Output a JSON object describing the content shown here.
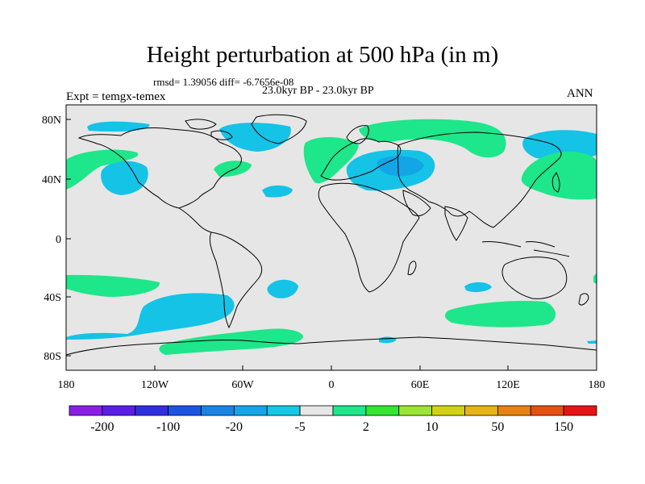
{
  "title": "Height perturbation at 500 hPa (in m)",
  "stats": "rmsd= 1.39056 diff= -6.7656e-08",
  "period": "23.0kyr BP - 23.0kyr BP",
  "experiment": "Expt = temgx-temex",
  "season": "ANN",
  "x_ticks": [
    "180",
    "120W",
    "60W",
    "0",
    "60E",
    "120E",
    "180"
  ],
  "y_ticks": [
    "80N",
    "40N",
    "0",
    "40S",
    "80S"
  ],
  "colorbar": {
    "colors": [
      "#8a1ee6",
      "#5a1ee6",
      "#2f2fe0",
      "#1a55e6",
      "#1a84e6",
      "#14a6e6",
      "#14c8e6",
      "#e6e6e6",
      "#1ee68a",
      "#32e632",
      "#9ae632",
      "#d2d214",
      "#e6b414",
      "#e68214",
      "#e65014",
      "#e61414"
    ],
    "labels": [
      "-200",
      "-100",
      "-20",
      "-5",
      "2",
      "10",
      "50",
      "150"
    ]
  },
  "colors": {
    "negative_fill": "#14c3e6",
    "negative_core": "#14a5e6",
    "positive_fill": "#1ee68a",
    "land_background": "#e6e6e6",
    "coastline": "#000000"
  }
}
